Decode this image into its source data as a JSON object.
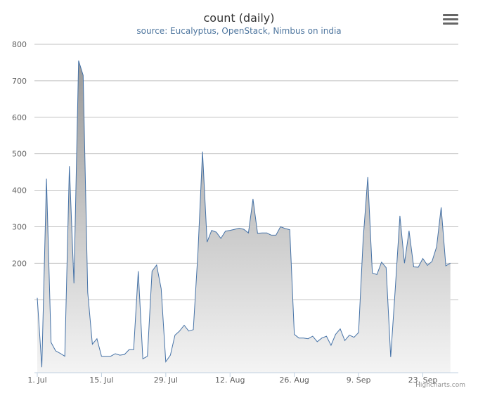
{
  "header": {
    "title": "count (daily)",
    "subtitle": "source: Eucalyptus, OpenStack, Nimbus on india"
  },
  "menu": {
    "icon": "hamburger-menu-icon"
  },
  "credit": "Highcharts.com",
  "chart_data": {
    "type": "area",
    "title": "count (daily)",
    "subtitle": "source: Eucalyptus, OpenStack, Nimbus on india",
    "xlabel": "",
    "ylabel": "",
    "ylim": [
      -100,
      800
    ],
    "yticks": [
      200,
      300,
      400,
      500,
      600,
      700,
      800
    ],
    "x_start": "2013-07-01",
    "xticks": [
      {
        "label": "1. Jul",
        "day": 0
      },
      {
        "label": "15. Jul",
        "day": 14
      },
      {
        "label": "29. Jul",
        "day": 28
      },
      {
        "label": "12. Aug",
        "day": 42
      },
      {
        "label": "26. Aug",
        "day": 56
      },
      {
        "label": "9. Sep",
        "day": 70
      },
      {
        "label": "23. Sep",
        "day": 84
      }
    ],
    "grid": true,
    "legend": "none",
    "colors": {
      "line": "#4572a7",
      "fill_top": "#999999",
      "fill_bottom": "#f4f4f4"
    },
    "values": [
      105,
      -85,
      432,
      -17,
      -40,
      -47,
      -55,
      466,
      145,
      755,
      715,
      120,
      -22,
      -7,
      -55,
      -55,
      -55,
      -48,
      -52,
      -50,
      -37,
      -37,
      178,
      -62,
      -55,
      178,
      195,
      130,
      -70,
      -52,
      3,
      14,
      30,
      14,
      18,
      230,
      506,
      258,
      290,
      285,
      268,
      288,
      290,
      293,
      296,
      293,
      283,
      376,
      282,
      283,
      283,
      277,
      277,
      300,
      295,
      292,
      5,
      -5,
      -5,
      -7,
      0,
      -15,
      -5,
      0,
      -25,
      5,
      20,
      -12,
      3,
      -3,
      10,
      265,
      436,
      173,
      169,
      203,
      188,
      -57,
      130,
      330,
      200,
      289,
      190,
      189,
      213,
      194,
      205,
      245,
      353,
      193,
      200
    ]
  }
}
